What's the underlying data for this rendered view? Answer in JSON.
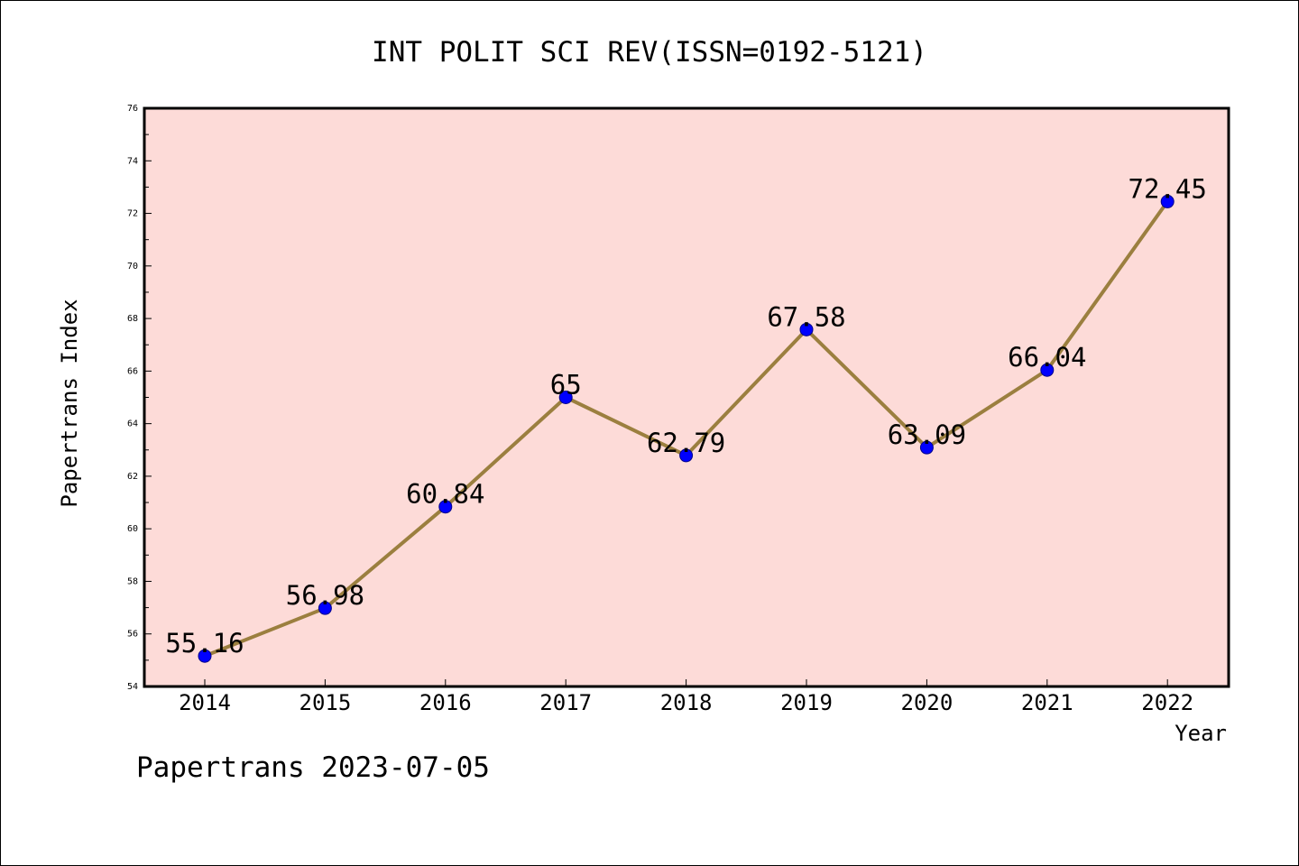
{
  "chart_data": {
    "type": "line",
    "title": "INT POLIT SCI REV(ISSN=0192-5121)",
    "xlabel": "Year",
    "ylabel": "Papertrans Index",
    "x": [
      "2014",
      "2015",
      "2016",
      "2017",
      "2018",
      "2019",
      "2020",
      "2021",
      "2022"
    ],
    "series": [
      {
        "values": [
          55.16,
          56.98,
          60.84,
          65,
          62.79,
          67.58,
          63.09,
          66.04,
          72.45
        ],
        "labels": [
          "55.16",
          "56.98",
          "60.84",
          "65",
          "62.79",
          "67.58",
          "63.09",
          "66.04",
          "72.45"
        ],
        "line_color": "#9b7f3f",
        "marker_color": "#0000ff"
      }
    ],
    "ylim": [
      54,
      76
    ],
    "yticks": [
      "54",
      "56",
      "58",
      "60",
      "62",
      "64",
      "66",
      "68",
      "70",
      "72",
      "74",
      "76"
    ],
    "plot_background": "#fddbd8",
    "grid": false,
    "legend": "none"
  },
  "footer": {
    "note": "Papertrans 2023-07-05"
  }
}
